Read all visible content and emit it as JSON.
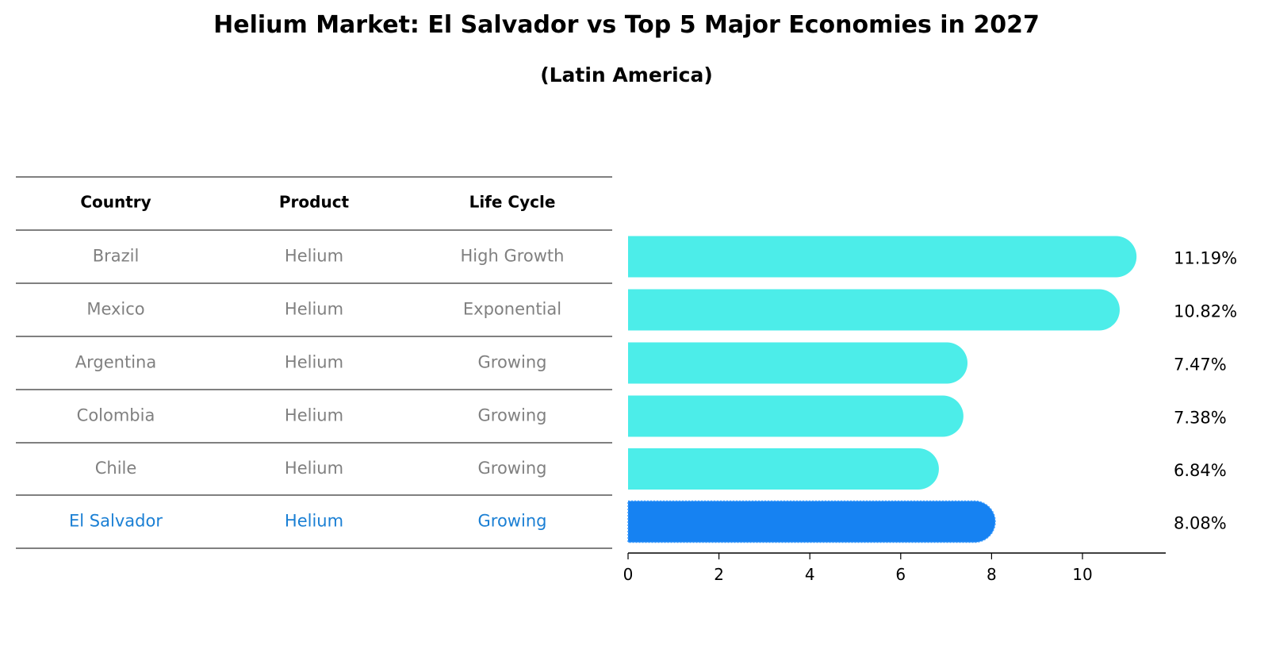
{
  "title": "Helium Market: El Salvador vs Top 5 Major Economies in 2027",
  "subtitle": "(Latin America)",
  "table": {
    "headers": [
      "Country",
      "Product",
      "Life Cycle"
    ],
    "rows": [
      [
        "Brazil",
        "Helium",
        "High Growth"
      ],
      [
        "Mexico",
        "Helium",
        "Exponential"
      ],
      [
        "Argentina",
        "Helium",
        "Growing"
      ],
      [
        "Colombia",
        "Helium",
        "Growing"
      ],
      [
        "Chile",
        "Helium",
        "Growing"
      ],
      [
        "El Salvador",
        "Helium",
        "Growing"
      ]
    ]
  },
  "colors": {
    "bar": "#4cede9",
    "highlight": "#1682f2",
    "muted_text": "#808080",
    "highlight_text": "#1a7fd4"
  },
  "chart_data": {
    "type": "bar",
    "orientation": "horizontal",
    "title": "Helium Market: El Salvador vs Top 5 Major Economies in 2027",
    "subtitle": "(Latin America)",
    "categories": [
      "Brazil",
      "Mexico",
      "Argentina",
      "Colombia",
      "Chile",
      "El Salvador"
    ],
    "values": [
      11.19,
      10.82,
      7.47,
      7.38,
      6.84,
      8.08
    ],
    "value_labels": [
      "11.19%",
      "10.82%",
      "7.47%",
      "7.38%",
      "6.84%",
      "8.08%"
    ],
    "highlight_category": "El Salvador",
    "xticks": [
      0,
      2,
      4,
      6,
      8,
      10
    ],
    "xlim": [
      0,
      11.8
    ],
    "xlabel": "",
    "ylabel": "",
    "grid": false
  }
}
